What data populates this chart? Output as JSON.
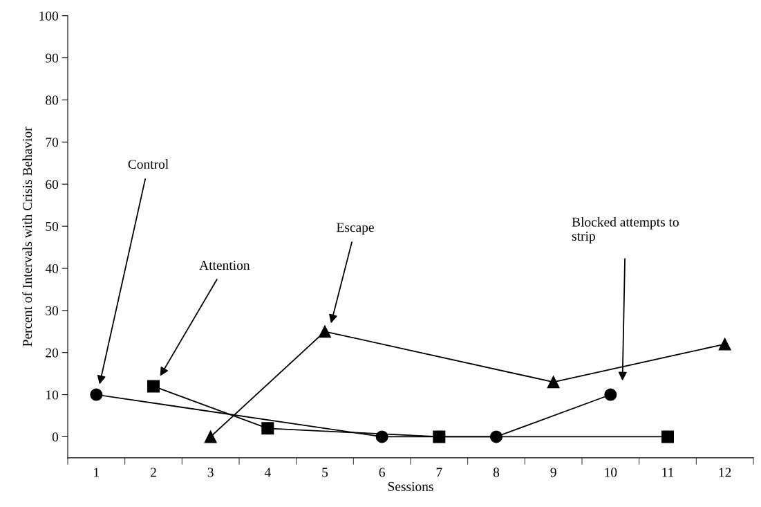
{
  "chart_data": {
    "type": "line",
    "xlabel": "Sessions",
    "ylabel": "Percent of Intervals with Crisis Behavior",
    "categories": [
      "1",
      "2",
      "3",
      "4",
      "5",
      "6",
      "7",
      "8",
      "9",
      "10",
      "11",
      "12"
    ],
    "series": [
      {
        "name": "Control",
        "color": "#000000",
        "marker": "circle",
        "x": [
          "1",
          "6",
          "8",
          "10"
        ],
        "values": [
          10,
          0,
          0,
          10
        ]
      },
      {
        "name": "Attention",
        "color": "#000000",
        "marker": "square",
        "x": [
          "2",
          "4",
          "7",
          "11"
        ],
        "values": [
          12,
          2,
          0,
          0
        ]
      },
      {
        "name": "Escape",
        "color": "#000000",
        "marker": "triangle",
        "x": [
          "3",
          "5",
          "9",
          "12"
        ],
        "values": [
          0,
          25,
          13,
          22
        ]
      }
    ],
    "annotations": [
      "Blocked attempts to\nstrip"
    ],
    "ylim": [
      -5,
      100
    ],
    "yticks": [
      0,
      10,
      20,
      30,
      40,
      50,
      60,
      70,
      80,
      90,
      100
    ],
    "grid": false,
    "legend": false,
    "line_style": "solid"
  }
}
